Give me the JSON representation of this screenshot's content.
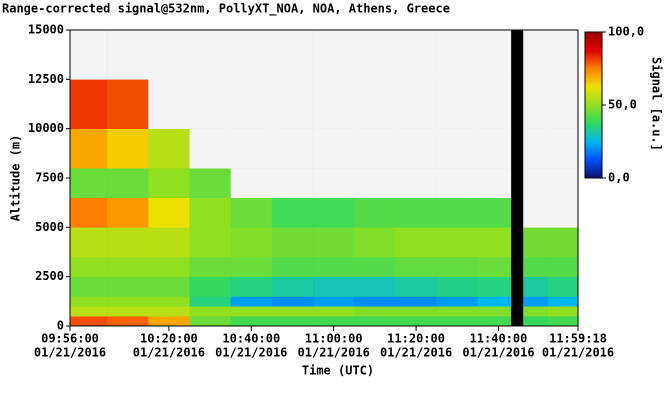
{
  "chart_data": {
    "type": "heatmap",
    "title": "Range-corrected signal@532nm, PollyXT_NOA, NOA, Athens, Greece",
    "x_label": "Time (UTC)",
    "y_label": "Altitude (m)",
    "colorbar_label": "Signal [a.u.]",
    "x": [
      "2016-01-21T09:56:00",
      "2016-01-21T10:05:00",
      "2016-01-21T10:15:00",
      "2016-01-21T10:25:00",
      "2016-01-21T10:35:00",
      "2016-01-21T10:45:00",
      "2016-01-21T10:55:00",
      "2016-01-21T11:05:00",
      "2016-01-21T11:15:00",
      "2016-01-21T11:25:00",
      "2016-01-21T11:35:00",
      "2016-01-21T11:46:00",
      "2016-01-21T11:52:00"
    ],
    "x_end": [
      "2016-01-21T10:05:00",
      "2016-01-21T10:15:00",
      "2016-01-21T10:25:00",
      "2016-01-21T10:35:00",
      "2016-01-21T10:45:00",
      "2016-01-21T10:55:00",
      "2016-01-21T11:05:00",
      "2016-01-21T11:15:00",
      "2016-01-21T11:25:00",
      "2016-01-21T11:35:00",
      "2016-01-21T11:43:00",
      "2016-01-21T11:52:00",
      "2016-01-21T11:59:18"
    ],
    "y_edges": [
      0,
      500,
      1000,
      1500,
      2500,
      3500,
      5000,
      6500,
      8000,
      10000,
      12500,
      15000
    ],
    "values": [
      [
        80,
        55,
        50,
        45,
        50,
        55,
        75,
        45,
        70,
        82,
        null
      ],
      [
        78,
        55,
        50,
        45,
        50,
        55,
        72,
        45,
        65,
        80,
        null
      ],
      [
        70,
        55,
        50,
        45,
        50,
        55,
        62,
        50,
        55,
        null,
        null
      ],
      [
        45,
        50,
        35,
        38,
        45,
        50,
        50,
        45,
        null,
        null,
        null
      ],
      [
        40,
        50,
        22,
        35,
        45,
        48,
        45,
        null,
        null,
        null,
        null
      ],
      [
        40,
        50,
        20,
        32,
        42,
        46,
        40,
        null,
        null,
        null,
        null
      ],
      [
        40,
        50,
        22,
        30,
        42,
        46,
        40,
        null,
        null,
        null,
        null
      ],
      [
        40,
        48,
        20,
        30,
        42,
        48,
        42,
        null,
        null,
        null,
        null
      ],
      [
        40,
        48,
        20,
        32,
        44,
        50,
        42,
        null,
        null,
        null,
        null
      ],
      [
        40,
        48,
        22,
        34,
        44,
        50,
        42,
        null,
        null,
        null,
        null
      ],
      [
        40,
        48,
        25,
        35,
        45,
        50,
        42,
        null,
        null,
        null,
        null
      ],
      [
        38,
        48,
        22,
        32,
        42,
        46,
        null,
        null,
        null,
        null,
        null
      ],
      [
        40,
        50,
        25,
        35,
        42,
        46,
        null,
        null,
        null,
        null,
        null
      ]
    ],
    "xlim": [
      "2016-01-21T09:56:00",
      "2016-01-21T11:59:18"
    ],
    "xticks": [
      {
        "value": "2016-01-21T09:56:00",
        "label": [
          "09:56:00",
          "01/21/2016"
        ]
      },
      {
        "value": "2016-01-21T10:20:00",
        "label": [
          "10:20:00",
          "01/21/2016"
        ]
      },
      {
        "value": "2016-01-21T10:40:00",
        "label": [
          "10:40:00",
          "01/21/2016"
        ]
      },
      {
        "value": "2016-01-21T11:00:00",
        "label": [
          "11:00:00",
          "01/21/2016"
        ]
      },
      {
        "value": "2016-01-21T11:20:00",
        "label": [
          "11:20:00",
          "01/21/2016"
        ]
      },
      {
        "value": "2016-01-21T11:40:00",
        "label": [
          "11:40:00",
          "01/21/2016"
        ]
      },
      {
        "value": "2016-01-21T11:59:18",
        "label": [
          "11:59:18",
          "01/21/2016"
        ]
      }
    ],
    "ylim": [
      0,
      15000
    ],
    "yticks": [
      0,
      2500,
      5000,
      7500,
      10000,
      12500,
      15000
    ],
    "clim": [
      0,
      100
    ],
    "cticks": [
      {
        "value": 0,
        "label": "0,0"
      },
      {
        "value": 50,
        "label": "50,0"
      },
      {
        "value": 100,
        "label": "100,0"
      }
    ],
    "colormap": [
      "#10106a",
      "#0050ff",
      "#00b8f0",
      "#30d860",
      "#90e020",
      "#f0e000",
      "#ff8000",
      "#e00000",
      "#a00000"
    ],
    "missing_color": "#000000",
    "masked_color": "#f4f4f4"
  }
}
